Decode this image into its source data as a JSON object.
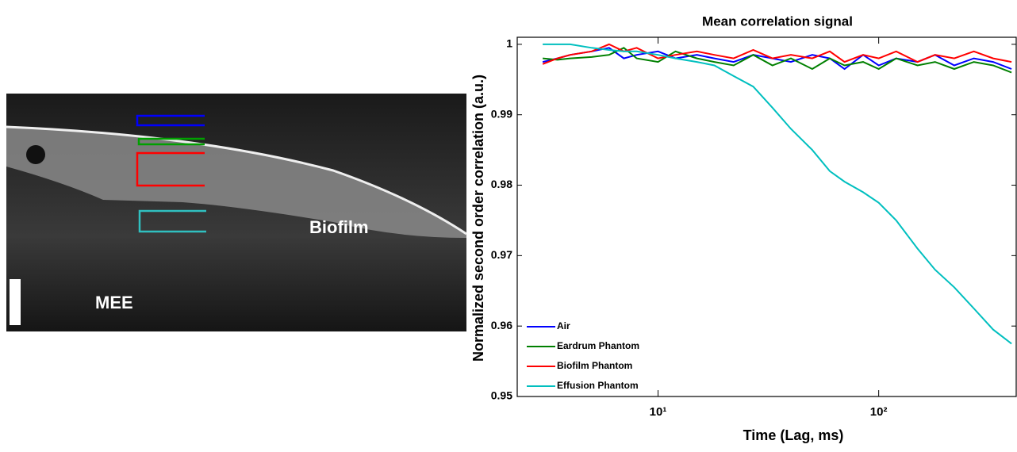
{
  "image": {
    "labels": [
      "Biofilm",
      "MEE"
    ]
  },
  "chart_data": {
    "type": "line",
    "title": "Mean correlation signal",
    "x_label": "Time (Lag, ms)",
    "y_label": "Normalized second order correlation (a.u.)",
    "x_scale": "log",
    "legend": "lower left",
    "x": [
      3,
      3.5,
      4,
      5,
      6,
      7,
      8,
      10,
      12,
      15,
      18,
      22,
      27,
      33,
      40,
      50,
      60,
      70,
      85,
      100,
      120,
      150,
      180,
      220,
      270,
      330,
      400
    ],
    "series": [
      {
        "name": "Air",
        "color": "#0000ff",
        "values": [
          0.9975,
          0.998,
          0.9985,
          0.999,
          0.9995,
          0.998,
          0.9985,
          0.999,
          0.998,
          0.9985,
          0.998,
          0.9975,
          0.9985,
          0.998,
          0.9975,
          0.9985,
          0.998,
          0.9965,
          0.9985,
          0.997,
          0.998,
          0.9975,
          0.9985,
          0.997,
          0.998,
          0.9975,
          0.9965
        ]
      },
      {
        "name": "Eardrum Phantom",
        "color": "#008000",
        "values": [
          0.998,
          0.9978,
          0.998,
          0.9982,
          0.9985,
          0.9995,
          0.998,
          0.9975,
          0.999,
          0.998,
          0.9975,
          0.997,
          0.9985,
          0.997,
          0.998,
          0.9965,
          0.998,
          0.997,
          0.9975,
          0.9965,
          0.998,
          0.997,
          0.9975,
          0.9965,
          0.9975,
          0.997,
          0.996
        ]
      },
      {
        "name": "Biofilm Phantom",
        "color": "#ff0000",
        "values": [
          0.9972,
          0.998,
          0.9985,
          0.999,
          1.0,
          0.999,
          0.9995,
          0.998,
          0.9985,
          0.999,
          0.9985,
          0.998,
          0.9992,
          0.998,
          0.9985,
          0.998,
          0.999,
          0.9975,
          0.9985,
          0.998,
          0.999,
          0.9975,
          0.9985,
          0.998,
          0.999,
          0.998,
          0.9975
        ]
      },
      {
        "name": "Effusion Phantom",
        "color": "#00bfbf",
        "values": [
          1.0,
          1.0,
          1.0,
          0.9995,
          0.9992,
          0.999,
          0.999,
          0.9985,
          0.998,
          0.9975,
          0.997,
          0.9955,
          0.994,
          0.991,
          0.988,
          0.985,
          0.982,
          0.9805,
          0.979,
          0.9775,
          0.975,
          0.971,
          0.968,
          0.9655,
          0.9625,
          0.9595,
          0.9575
        ]
      }
    ],
    "xlim": [
      2.3,
      420
    ],
    "xticks": [
      {
        "value": 10,
        "label": "10¹"
      },
      {
        "value": 100,
        "label": "10²"
      }
    ],
    "ylim": [
      0.95,
      1.001
    ],
    "yticks": [
      0.95,
      0.96,
      0.97,
      0.98,
      0.99,
      1
    ]
  }
}
